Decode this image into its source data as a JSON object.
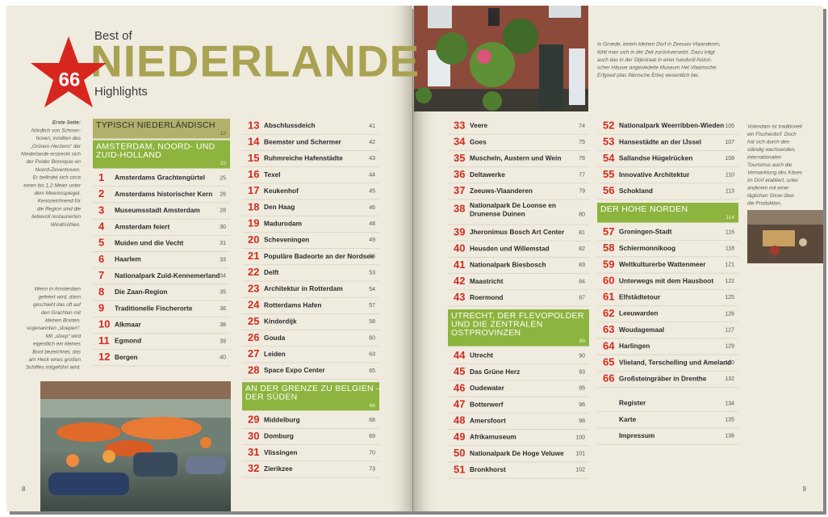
{
  "header": {
    "best_of": "Best of",
    "title": "NIEDERLANDE",
    "badge": "66",
    "subtitle": "Highlights"
  },
  "captions": {
    "cover": {
      "label": "Erste Seite:",
      "lines": [
        "Nördlich von Schoon-",
        "hoven, inmitten des",
        "„Grünen Herzens“ der",
        "Niederlande erstreckt sich",
        "der Polder Bonrepas en",
        "Noord-Zevenhoven.",
        "Er befindet sich circa",
        "einen bis 1,2 Meter unter",
        "dem Meeresspiegel.",
        "Kennzeichnend für",
        "die Region sind die",
        "liebevoll restaurierten",
        "Windmühlen."
      ]
    },
    "amsterdam": [
      "Wenn in Amsterdam",
      "gefeiert wird, dann",
      "geschieht das oft auf",
      "den Grachten mit",
      "kleinen Booten,",
      "sogenannten „sloepen“.",
      "Mit „sloep“ wird",
      "eigentlich ein kleines",
      "Boot bezeichnet, das",
      "am Heck eines großen",
      "Schiffes mitgeführt wird."
    ],
    "groede": [
      "In Groede, einem kleinen Dorf in Zeeuws-Vlaanderen,",
      "fühlt man sich in der Zeit zurückversetzt. Dazu trägt",
      "auch das in der Slijkstraat in einer handvoll histori-",
      "scher Häuser angesiedelte Museum Het Vlaamsche",
      "Erfgoed (das flämische Erbe) wesentlich bei."
    ],
    "volendam": [
      "Volendam ist traditionell",
      "ein Fischerdorf. Doch",
      "hat sich durch den",
      "ständig wachsenden,",
      "internationalen",
      "Tourismus auch die",
      "Vermarktung des Käses",
      "im Dorf etabliert, unter",
      "anderem mit einer",
      "täglichen Show über",
      "die Produktion."
    ]
  },
  "page_numbers": [
    8,
    9
  ],
  "columns": [
    [
      {
        "section": [
          "TYPISCH NIEDERLÄNDISCH"
        ],
        "page": 12
      },
      {
        "section": [
          "AMSTERDAM, NOORD- UND",
          "ZUID-HOLLAND"
        ],
        "page": 22
      },
      {
        "num": 1,
        "label": "Amsterdams Grachtengürtel",
        "page": 25
      },
      {
        "num": 2,
        "label": "Amsterdams historischer Kern",
        "page": 26
      },
      {
        "num": 3,
        "label": "Museumsstadt Amsterdam",
        "page": 28
      },
      {
        "num": 4,
        "label": "Amsterdam feiert",
        "page": 30
      },
      {
        "num": 5,
        "label": "Muiden und die Vecht",
        "page": 31
      },
      {
        "num": 6,
        "label": "Haarlem",
        "page": 33
      },
      {
        "num": 7,
        "label": "Nationalpark Zuid-Kennemerland",
        "page": 34
      },
      {
        "num": 8,
        "label": "Die Zaan-Region",
        "page": 35
      },
      {
        "num": 9,
        "label": "Traditionelle Fischerorte",
        "page": 36
      },
      {
        "num": 10,
        "label": "Alkmaar",
        "page": 38
      },
      {
        "num": 11,
        "label": "Egmond",
        "page": 39
      },
      {
        "num": 12,
        "label": "Bergen",
        "page": 40
      }
    ],
    [
      {
        "num": 13,
        "label": "Abschlussdeich",
        "page": 41
      },
      {
        "num": 14,
        "label": "Beemster und Schermer",
        "page": 42
      },
      {
        "num": 15,
        "label": "Ruhmreiche Hafenstädte",
        "page": 43
      },
      {
        "num": 16,
        "label": "Texel",
        "page": 44
      },
      {
        "num": 17,
        "label": "Keukenhof",
        "page": 45
      },
      {
        "num": 18,
        "label": "Den Haag",
        "page": 46
      },
      {
        "num": 19,
        "label": "Madurodam",
        "page": 48
      },
      {
        "num": 20,
        "label": "Scheveningen",
        "page": 49
      },
      {
        "num": 21,
        "label": "Populäre Badeorte an der Nordsee",
        "page": 50
      },
      {
        "num": 22,
        "label": "Delft",
        "page": 53
      },
      {
        "num": 23,
        "label": "Architektur in Rotterdam",
        "page": 54
      },
      {
        "num": 24,
        "label": "Rotterdams Hafen",
        "page": 57
      },
      {
        "num": 25,
        "label": "Kinderdijk",
        "page": 58
      },
      {
        "num": 26,
        "label": "Gouda",
        "page": 60
      },
      {
        "num": 27,
        "label": "Leiden",
        "page": 63
      },
      {
        "num": 28,
        "label": "Space Expo Center",
        "page": 65
      },
      {
        "section": [
          "AN DER GRENZE ZU BELGIEN –",
          "DER SÜDEN"
        ],
        "page": 66
      },
      {
        "num": 29,
        "label": "Middelburg",
        "page": 68
      },
      {
        "num": 30,
        "label": "Domburg",
        "page": 69
      },
      {
        "num": 31,
        "label": "Vlissingen",
        "page": 70
      },
      {
        "num": 32,
        "label": "Zierikzee",
        "page": 73
      }
    ],
    [
      {
        "num": 33,
        "label": "Veere",
        "page": 74
      },
      {
        "num": 34,
        "label": "Goes",
        "page": 75
      },
      {
        "num": 35,
        "label": "Muscheln, Austern und Wein",
        "page": 76
      },
      {
        "num": 36,
        "label": "Deltawerke",
        "page": 77
      },
      {
        "num": 37,
        "label": "Zeeuws-Vlaanderen",
        "page": 79
      },
      {
        "num": 38,
        "label": [
          "Nationalpark De Loonse en",
          "Drunense Duinen"
        ],
        "page": 80
      },
      {
        "num": 39,
        "label": "Jheronimus Bosch Art Center",
        "page": 81
      },
      {
        "num": 40,
        "label": "Heusden und Willemstad",
        "page": 82
      },
      {
        "num": 41,
        "label": "Nationalpark Biesbosch",
        "page": 83
      },
      {
        "num": 42,
        "label": "Maastricht",
        "page": 84
      },
      {
        "num": 43,
        "label": "Roermond",
        "page": 87
      },
      {
        "section": [
          "UTRECHT, DER FLEVOPOLDER",
          "UND DIE ZENTRALEN",
          "OSTPROVINZEN"
        ],
        "page": 88
      },
      {
        "num": 44,
        "label": "Utrecht",
        "page": 90
      },
      {
        "num": 45,
        "label": "Das Grüne Herz",
        "page": 93
      },
      {
        "num": 46,
        "label": "Oudewater",
        "page": 95
      },
      {
        "num": 47,
        "label": "Botterwerf",
        "page": 96
      },
      {
        "num": 48,
        "label": "Amersfoort",
        "page": 98
      },
      {
        "num": 49,
        "label": "Afrikamuseum",
        "page": 100
      },
      {
        "num": 50,
        "label": "Nationalpark De Hoge Veluwe",
        "page": 101
      },
      {
        "num": 51,
        "label": "Bronkhorst",
        "page": 102
      }
    ],
    [
      {
        "num": 52,
        "label": "Nationalpark Weerribben-Wieden",
        "page": 105
      },
      {
        "num": 53,
        "label": "Hansestädte an der IJssel",
        "page": 107
      },
      {
        "num": 54,
        "label": "Sallandse Hügelrücken",
        "page": 108
      },
      {
        "num": 55,
        "label": "Innovative Architektur",
        "page": 110
      },
      {
        "num": 56,
        "label": "Schokland",
        "page": 113
      },
      {
        "section": [
          "DER HOHE NORDEN"
        ],
        "page": 114
      },
      {
        "num": 57,
        "label": "Groningen-Stadt",
        "page": 116
      },
      {
        "num": 58,
        "label": "Schiermonnikoog",
        "page": 118
      },
      {
        "num": 59,
        "label": "Weltkulturerbe Wattenmeer",
        "page": 121
      },
      {
        "num": 60,
        "label": "Unterwegs mit dem Hausboot",
        "page": 122
      },
      {
        "num": 61,
        "label": "Elfstädtetour",
        "page": 125
      },
      {
        "num": 62,
        "label": "Leeuwarden",
        "page": 126
      },
      {
        "num": 63,
        "label": "Woudagemaal",
        "page": 127
      },
      {
        "num": 64,
        "label": "Harlingen",
        "page": 129
      },
      {
        "num": 65,
        "label": "Vlieland, Terschelling und Ameland",
        "page": 130
      },
      {
        "num": 66,
        "label": "Großsteingräber in Drenthe",
        "page": 132
      },
      {
        "label": "Register",
        "page": 134
      },
      {
        "label": "Karte",
        "page": 135
      },
      {
        "label": "Impressum",
        "page": 136
      }
    ]
  ]
}
